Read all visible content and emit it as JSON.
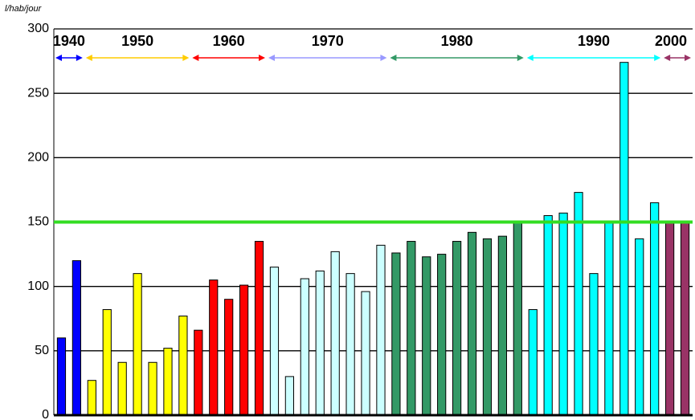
{
  "chart_data": {
    "type": "bar",
    "y_label": "l/hab/jour",
    "categories": [
      null,
      null,
      null,
      null,
      null,
      null,
      null,
      null,
      null,
      null,
      null,
      null,
      null,
      null,
      null,
      null,
      null,
      null,
      null,
      null,
      null,
      null,
      null,
      null,
      null,
      null,
      null,
      null,
      null,
      null,
      null,
      null,
      null,
      null,
      null,
      null,
      null,
      null,
      null,
      null,
      null,
      null
    ],
    "series": [
      {
        "name": "1940",
        "color": "#0000ff",
        "arrow_color": "#0000ff",
        "values": [
          60,
          120,
          null,
          null,
          null,
          null,
          null,
          null,
          null,
          null,
          null,
          null,
          null,
          null,
          null,
          null,
          null,
          null,
          null,
          null,
          null,
          null,
          null,
          null,
          null,
          null,
          null,
          null,
          null,
          null,
          null,
          null,
          null,
          null,
          null,
          null,
          null,
          null,
          null,
          null,
          null,
          null
        ]
      },
      {
        "name": "1950",
        "color": "#ffff00",
        "arrow_color": "#ffcc00",
        "values": [
          null,
          null,
          27,
          82,
          41,
          110,
          41,
          52,
          77,
          null,
          null,
          null,
          null,
          null,
          null,
          null,
          null,
          null,
          null,
          null,
          null,
          null,
          null,
          null,
          null,
          null,
          null,
          null,
          null,
          null,
          null,
          null,
          null,
          null,
          null,
          null,
          null,
          null,
          null,
          null,
          null,
          null
        ]
      },
      {
        "name": "1960",
        "color": "#ff0000",
        "arrow_color": "#ff0000",
        "values": [
          null,
          null,
          null,
          null,
          null,
          null,
          null,
          null,
          null,
          66,
          105,
          90,
          101,
          135,
          null,
          null,
          null,
          null,
          null,
          null,
          null,
          null,
          null,
          null,
          null,
          null,
          null,
          null,
          null,
          null,
          null,
          null,
          null,
          null,
          null,
          null,
          null,
          null,
          null,
          null,
          null,
          null
        ]
      },
      {
        "name": "1970",
        "color": "#ccffff",
        "arrow_color": "#9999ff",
        "values": [
          null,
          null,
          null,
          null,
          null,
          null,
          null,
          null,
          null,
          null,
          null,
          null,
          null,
          null,
          115,
          30,
          106,
          112,
          127,
          110,
          96,
          132,
          null,
          null,
          null,
          null,
          null,
          null,
          null,
          null,
          null,
          null,
          null,
          null,
          null,
          null,
          null,
          null,
          null,
          null,
          null,
          null
        ]
      },
      {
        "name": "1980",
        "color": "#339966",
        "arrow_color": "#339966",
        "values": [
          null,
          null,
          null,
          null,
          null,
          null,
          null,
          null,
          null,
          null,
          null,
          null,
          null,
          null,
          null,
          null,
          null,
          null,
          null,
          null,
          null,
          null,
          126,
          135,
          123,
          125,
          135,
          142,
          137,
          139,
          150,
          null,
          null,
          null,
          null,
          null,
          null,
          null,
          null,
          null,
          null,
          null
        ]
      },
      {
        "name": "1990",
        "color": "#00ffff",
        "arrow_color": "#00ffff",
        "values": [
          null,
          null,
          null,
          null,
          null,
          null,
          null,
          null,
          null,
          null,
          null,
          null,
          null,
          null,
          null,
          null,
          null,
          null,
          null,
          null,
          null,
          null,
          null,
          null,
          null,
          null,
          null,
          null,
          null,
          null,
          null,
          82,
          155,
          157,
          173,
          110,
          150,
          274,
          137,
          165,
          null,
          null
        ]
      },
      {
        "name": "2000",
        "color": "#993366",
        "arrow_color": "#993366",
        "values": [
          null,
          null,
          null,
          null,
          null,
          null,
          null,
          null,
          null,
          null,
          null,
          null,
          null,
          null,
          null,
          null,
          null,
          null,
          null,
          null,
          null,
          null,
          null,
          null,
          null,
          null,
          null,
          null,
          null,
          null,
          null,
          null,
          null,
          null,
          null,
          null,
          null,
          null,
          null,
          null,
          150,
          150
        ]
      }
    ],
    "ylim": [
      0,
      300
    ],
    "yticks": [
      0,
      50,
      100,
      150,
      200,
      250,
      300
    ],
    "grid": true,
    "reference_line": {
      "value": 150,
      "color": "#33dd22"
    }
  }
}
